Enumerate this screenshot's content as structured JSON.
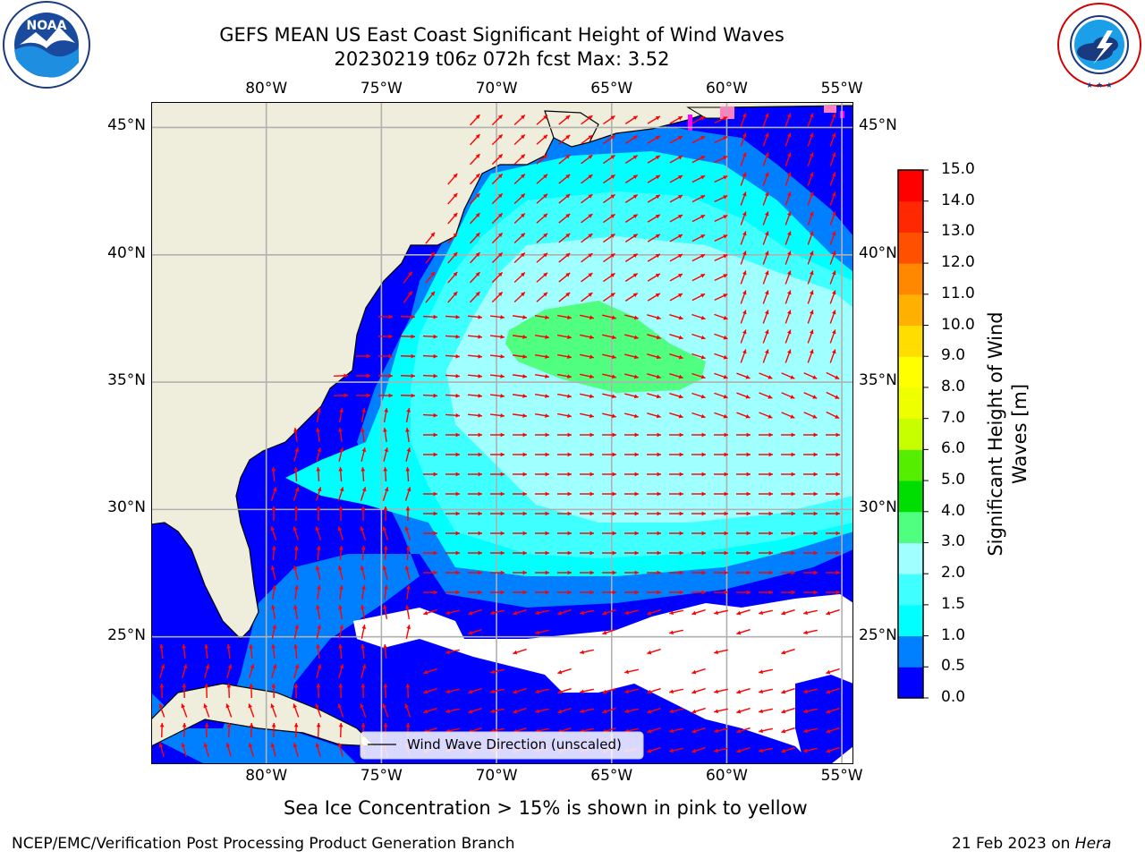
{
  "header": {
    "title_line1": "GEFS MEAN US East Coast Significant Height of Wind Waves",
    "title_line2": "20230219 t06z 072h fcst   Max: 3.52"
  },
  "logos": {
    "left": {
      "text": "NOAA",
      "ring_text": "NATIONAL OCEANIC AND ATMOSPHERIC ADMINISTRATION · U.S. DEPARTMENT OF COMMERCE"
    },
    "right": {
      "ring_text": "NATIONAL WEATHER SERVICE"
    }
  },
  "map": {
    "lon_ticks": [
      "80°W",
      "75°W",
      "70°W",
      "65°W",
      "60°W",
      "55°W"
    ],
    "lat_ticks": [
      "45°N",
      "40°N",
      "35°N",
      "30°N",
      "25°N"
    ],
    "lon_range": [
      -85,
      -54.5
    ],
    "lat_range": [
      20,
      46
    ],
    "legend_label": "Wind Wave Direction (unscaled)",
    "colors": {
      "land": "#efeedc",
      "arrows": "#ff0000",
      "grid": "#b0b0b0",
      "no_data": "#ffffff"
    }
  },
  "colorbar": {
    "label": "Significant Height of Wind Waves [m]",
    "label_line1": "Significant Height of Wind",
    "label_line2": "Waves [m]",
    "ticks": [
      "0.0",
      "0.5",
      "1.0",
      "1.5",
      "2.0",
      "3.0",
      "4.0",
      "5.0",
      "6.0",
      "7.0",
      "8.0",
      "9.0",
      "10.0",
      "11.0",
      "12.0",
      "13.0",
      "14.0",
      "15.0"
    ],
    "colors": [
      "#0000ff",
      "#0080ff",
      "#00ffff",
      "#40ffff",
      "#a0ffff",
      "#50ff80",
      "#00dd00",
      "#55ee00",
      "#c8ff00",
      "#eeff00",
      "#ffff00",
      "#ffdd00",
      "#ffb000",
      "#ff8800",
      "#ff5000",
      "#ff2800",
      "#ff0000"
    ]
  },
  "caption": "Sea Ice Concentration > 15% is shown in pink to yellow",
  "footer": {
    "left": "NCEP/EMC/Verification Post Processing Product Generation Branch",
    "date": "21 Feb 2023 on ",
    "machine": "Hera"
  }
}
